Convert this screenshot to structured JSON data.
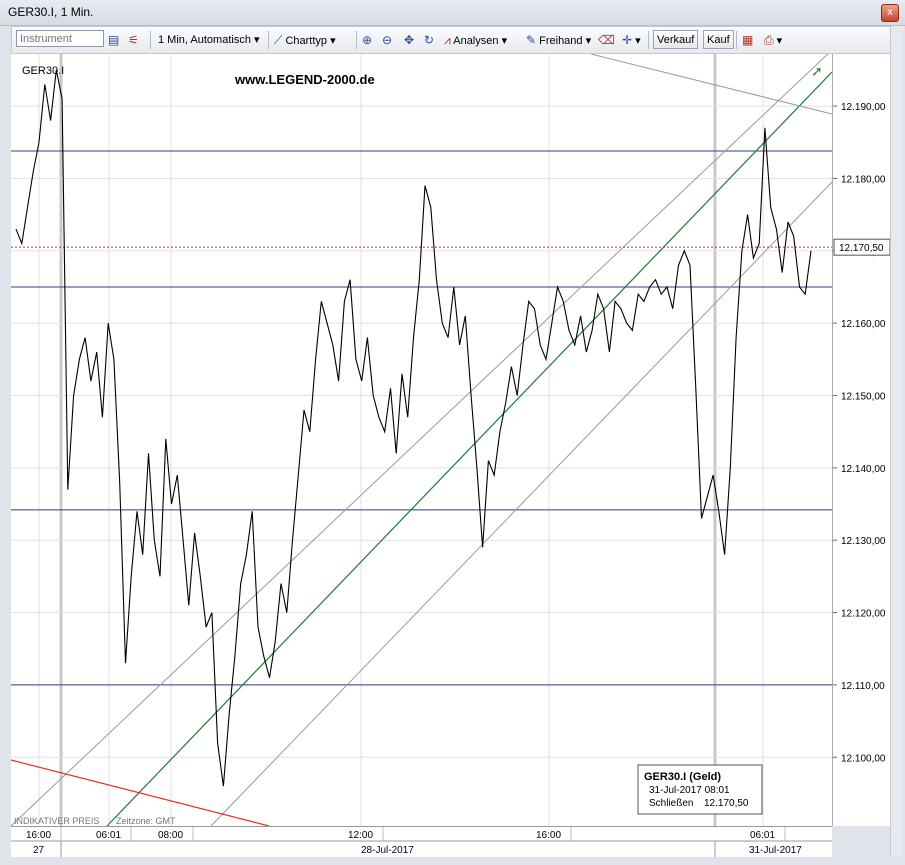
{
  "window": {
    "title": "GER30.I, 1 Min.",
    "close_label": "x"
  },
  "toolbar": {
    "instrument_placeholder": "Instrument",
    "interval_label": "1 Min,  Automatisch",
    "charttype_label": "Charttyp",
    "analysen_label": "Analysen",
    "freihand_label": "Freihand",
    "verkauf_label": "Verkauf",
    "kauf_label": "Kauf"
  },
  "chart": {
    "symbol_label": "GER30.I",
    "watermark": "www.LEGEND-2000.de",
    "indicative_label": "INDIKATIVER PREIS",
    "timezone_label": "Zeitzone: GMT",
    "current_price_label": "12.170,50",
    "tooltip": {
      "title": "GER30.I (Geld)",
      "datetime": "31-Jul-2017 08:01",
      "close_label": "Schließen",
      "close_value": "12.170,50"
    },
    "colors": {
      "price_line": "#000000",
      "channel_green": "#1e7a3a",
      "channel_gray": "#9a9a9a",
      "hline": "#2d3f7a",
      "red_line": "#e03020",
      "current_dotted": "#c03030"
    }
  },
  "chart_data": {
    "type": "line",
    "y_ticks": [
      12100,
      12110,
      12120,
      12130,
      12140,
      12150,
      12160,
      12170,
      12180,
      12190
    ],
    "y_tick_labels": [
      "12.100,00",
      "12.110,00",
      "12.120,00",
      "12.130,00",
      "12.140,00",
      "12.150,00",
      "12.160,00",
      "12.170,00",
      "12.180,00",
      "12.190,00"
    ],
    "ylim": [
      12090.5,
      12197.2
    ],
    "x_tick_labels": [
      "16:00",
      "06:01",
      "08:00",
      "12:00",
      "16:00",
      "06:01"
    ],
    "date_labels": [
      "27",
      "28-Jul-2017",
      "31-Jul-2017"
    ],
    "horizontal_lines": [
      12183.8,
      12165.0,
      12134.2,
      12110.0
    ],
    "current_price": 12170.5,
    "price_series": [
      12173,
      12171,
      12176,
      12181,
      12185,
      12193,
      12188,
      12195,
      12191,
      12137,
      12150,
      12155,
      12158,
      12152,
      12156,
      12147,
      12160,
      12155,
      12138,
      12113,
      12125,
      12134,
      12128,
      12142,
      12130,
      12125,
      12144,
      12135,
      12139,
      12130,
      12121,
      12131,
      12125,
      12118,
      12120,
      12102,
      12096,
      12106,
      12114,
      12124,
      12128,
      12134,
      12118,
      12114,
      12111,
      12116,
      12124,
      12120,
      12130,
      12139,
      12148,
      12145,
      12155,
      12163,
      12160,
      12157,
      12152,
      12163,
      12166,
      12155,
      12152,
      12158,
      12150,
      12147,
      12145,
      12151,
      12142,
      12153,
      12147,
      12158,
      12166,
      12179,
      12176,
      12166,
      12160,
      12158,
      12165,
      12157,
      12161,
      12150,
      12140,
      12129,
      12141,
      12139,
      12145,
      12149,
      12154,
      12150,
      12157,
      12163,
      12162,
      12157,
      12155,
      12160,
      12165,
      12163,
      12159,
      12157,
      12161,
      12156,
      12159,
      12164,
      12162,
      12156,
      12163,
      12162,
      12160,
      12159,
      12164,
      12163,
      12165,
      12166,
      12164,
      12165,
      12162,
      12168,
      12170,
      12168,
      12151,
      12133,
      12136,
      12139,
      12134,
      12128,
      12140,
      12158,
      12170,
      12175,
      12169,
      12171,
      12187,
      12176,
      12173,
      12167,
      12174,
      12172,
      12165,
      12164,
      12170
    ]
  }
}
